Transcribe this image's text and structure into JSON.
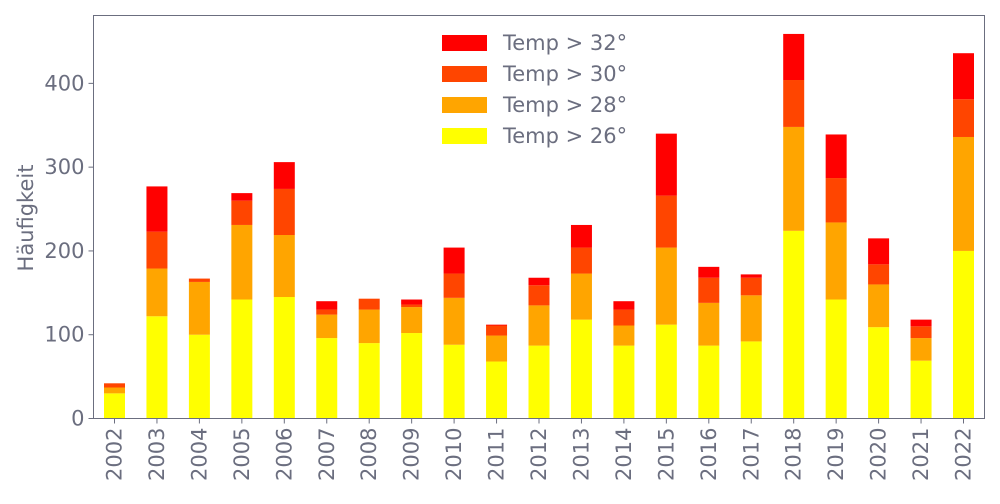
{
  "chart_data": {
    "type": "bar",
    "stacked": true,
    "title": "",
    "xlabel": "",
    "ylabel": "Häufigkeit",
    "ylim": [
      0,
      481
    ],
    "yticks": [
      0,
      100,
      200,
      300,
      400
    ],
    "grid": false,
    "legend_position": "top-center",
    "categories": [
      "2002",
      "2003",
      "2004",
      "2005",
      "2006",
      "2007",
      "2008",
      "2009",
      "2010",
      "2011",
      "2012",
      "2013",
      "2014",
      "2015",
      "2016",
      "2017",
      "2018",
      "2019",
      "2020",
      "2021",
      "2022"
    ],
    "series": [
      {
        "name": "Temp > 26°",
        "color": "#ffff00",
        "values": [
          30,
          122,
          100,
          142,
          145,
          96,
          90,
          102,
          88,
          68,
          87,
          118,
          87,
          112,
          87,
          92,
          224,
          142,
          109,
          69,
          200
        ]
      },
      {
        "name": "Temp > 28°",
        "color": "#ffa500",
        "values": [
          7,
          57,
          63,
          89,
          74,
          28,
          40,
          31,
          56,
          31,
          48,
          55,
          24,
          92,
          51,
          55,
          124,
          92,
          51,
          27,
          136
        ]
      },
      {
        "name": "Temp > 30°",
        "color": "#ff4500",
        "values": [
          5,
          44,
          4,
          29,
          55,
          6,
          13,
          3,
          29,
          12,
          24,
          31,
          19,
          62,
          30,
          21,
          56,
          53,
          24,
          14,
          45
        ]
      },
      {
        "name": "Temp > 32°",
        "color": "#ff0000",
        "values": [
          0,
          54,
          0,
          9,
          32,
          10,
          0,
          6,
          31,
          1,
          9,
          27,
          10,
          74,
          13,
          4,
          55,
          52,
          31,
          8,
          55
        ]
      }
    ],
    "legend_order": [
      3,
      2,
      1,
      0
    ]
  }
}
